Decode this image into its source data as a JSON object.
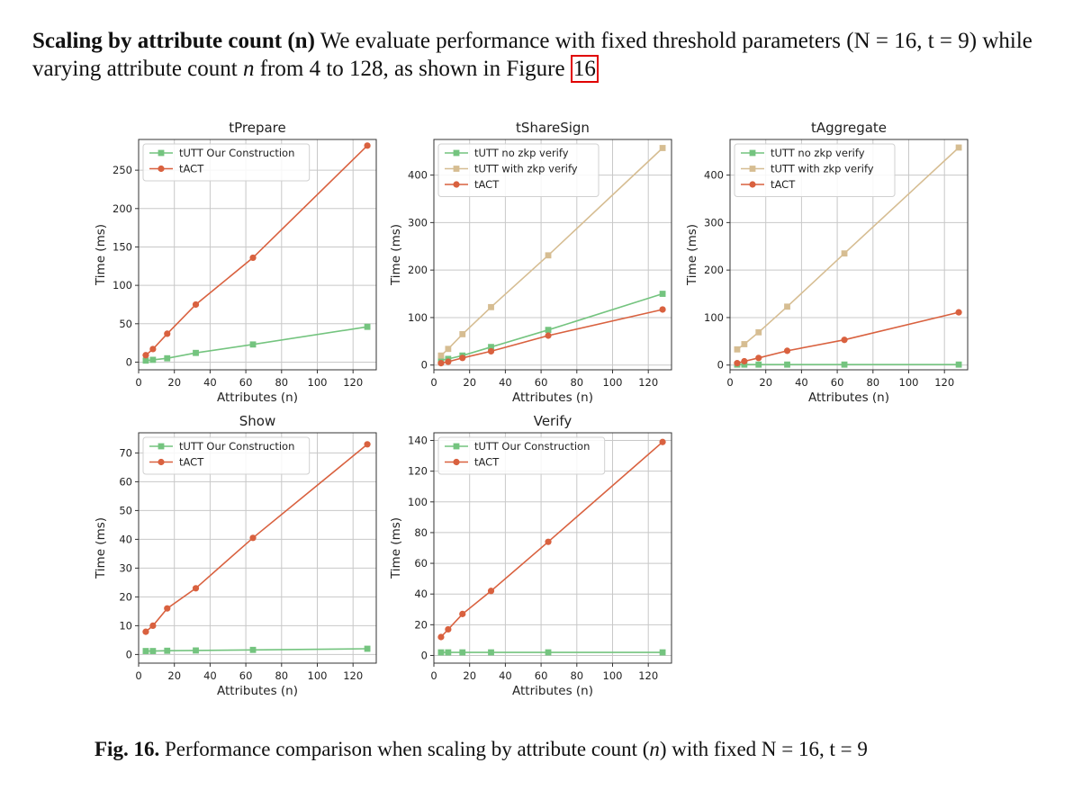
{
  "paragraph": {
    "lead": "Scaling by attribute count (n)",
    "text1": "We evaluate performance with fixed threshold parameters (N = 16, t = 9) while varying attribute count ",
    "var": "n",
    "text2": " from 4 to 128, as shown in Figure ",
    "ref": "16"
  },
  "caption": {
    "label": "Fig. 16.",
    "text1": "Performance comparison when scaling by attribute count (",
    "var": "n",
    "text2": ") with fixed N = 16, t = 9"
  },
  "chart_data": [
    {
      "type": "line",
      "title": "tPrepare",
      "xlabel": "Attributes (n)",
      "ylabel": "Time (ms)",
      "xlim": [
        0,
        133
      ],
      "ylim": [
        -10,
        290
      ],
      "xticks": [
        0,
        20,
        40,
        60,
        80,
        100,
        120
      ],
      "yticks": [
        0,
        50,
        100,
        150,
        200,
        250
      ],
      "grid": true,
      "legend": "top-left",
      "x": [
        4,
        8,
        16,
        32,
        64,
        128
      ],
      "series": [
        {
          "name": "tUTT Our Construction",
          "marker": "square",
          "color": "#74c47f",
          "values": [
            2,
            3,
            5,
            12,
            23,
            46
          ]
        },
        {
          "name": "tACT",
          "marker": "circle",
          "color": "#d9613f",
          "values": [
            9,
            17,
            37,
            75,
            136,
            282
          ]
        }
      ]
    },
    {
      "type": "line",
      "title": "tShareSign",
      "xlabel": "Attributes (n)",
      "ylabel": "Time (ms)",
      "xlim": [
        0,
        133
      ],
      "ylim": [
        -10,
        475
      ],
      "xticks": [
        0,
        20,
        40,
        60,
        80,
        100,
        120
      ],
      "yticks": [
        0,
        100,
        200,
        300,
        400
      ],
      "grid": true,
      "legend": "top-left",
      "x": [
        4,
        8,
        16,
        32,
        64,
        128
      ],
      "series": [
        {
          "name": "tUTT no zkp verify",
          "marker": "square",
          "color": "#74c47f",
          "values": [
            10,
            13,
            20,
            38,
            74,
            150
          ]
        },
        {
          "name": "tUTT with zkp verify",
          "marker": "square",
          "color": "#d6bd92",
          "values": [
            20,
            34,
            65,
            122,
            231,
            457
          ]
        },
        {
          "name": "tACT",
          "marker": "circle",
          "color": "#d9613f",
          "values": [
            4,
            7,
            15,
            29,
            62,
            117
          ]
        }
      ]
    },
    {
      "type": "line",
      "title": "tAggregate",
      "xlabel": "Attributes (n)",
      "ylabel": "Time (ms)",
      "xlim": [
        0,
        133
      ],
      "ylim": [
        -10,
        475
      ],
      "xticks": [
        0,
        20,
        40,
        60,
        80,
        100,
        120
      ],
      "yticks": [
        0,
        100,
        200,
        300,
        400
      ],
      "grid": true,
      "legend": "top-left",
      "x": [
        4,
        8,
        16,
        32,
        64,
        128
      ],
      "series": [
        {
          "name": "tUTT no zkp verify",
          "marker": "square",
          "color": "#74c47f",
          "values": [
            1,
            1,
            1,
            1,
            1,
            1
          ]
        },
        {
          "name": "tUTT with zkp verify",
          "marker": "square",
          "color": "#d6bd92",
          "values": [
            33,
            44,
            69,
            123,
            235,
            458
          ]
        },
        {
          "name": "tACT",
          "marker": "circle",
          "color": "#d9613f",
          "values": [
            4,
            8,
            15,
            30,
            53,
            111
          ]
        }
      ]
    },
    {
      "type": "line",
      "title": "Show",
      "xlabel": "Attributes (n)",
      "ylabel": "Time (ms)",
      "xlim": [
        0,
        133
      ],
      "ylim": [
        -3,
        77
      ],
      "xticks": [
        0,
        20,
        40,
        60,
        80,
        100,
        120
      ],
      "yticks": [
        0,
        10,
        20,
        30,
        40,
        50,
        60,
        70
      ],
      "grid": true,
      "legend": "top-left",
      "x": [
        4,
        8,
        16,
        32,
        64,
        128
      ],
      "series": [
        {
          "name": "tUTT Our Construction",
          "marker": "square",
          "color": "#74c47f",
          "values": [
            1.2,
            1.2,
            1.3,
            1.4,
            1.6,
            2.0
          ]
        },
        {
          "name": "tACT",
          "marker": "circle",
          "color": "#d9613f",
          "values": [
            7.9,
            10.0,
            16.0,
            23.0,
            40.5,
            73.0
          ]
        }
      ]
    },
    {
      "type": "line",
      "title": "Verify",
      "xlabel": "Attributes (n)",
      "ylabel": "Time (ms)",
      "xlim": [
        0,
        133
      ],
      "ylim": [
        -5,
        145
      ],
      "xticks": [
        0,
        20,
        40,
        60,
        80,
        100,
        120
      ],
      "yticks": [
        0,
        20,
        40,
        60,
        80,
        100,
        120,
        140
      ],
      "grid": true,
      "legend": "top-left",
      "x": [
        4,
        8,
        16,
        32,
        64,
        128
      ],
      "series": [
        {
          "name": "tUTT Our Construction",
          "marker": "square",
          "color": "#74c47f",
          "values": [
            2,
            2,
            2,
            2,
            2,
            2
          ]
        },
        {
          "name": "tACT",
          "marker": "circle",
          "color": "#d9613f",
          "values": [
            12,
            17,
            27,
            42,
            74,
            139
          ]
        }
      ]
    }
  ]
}
